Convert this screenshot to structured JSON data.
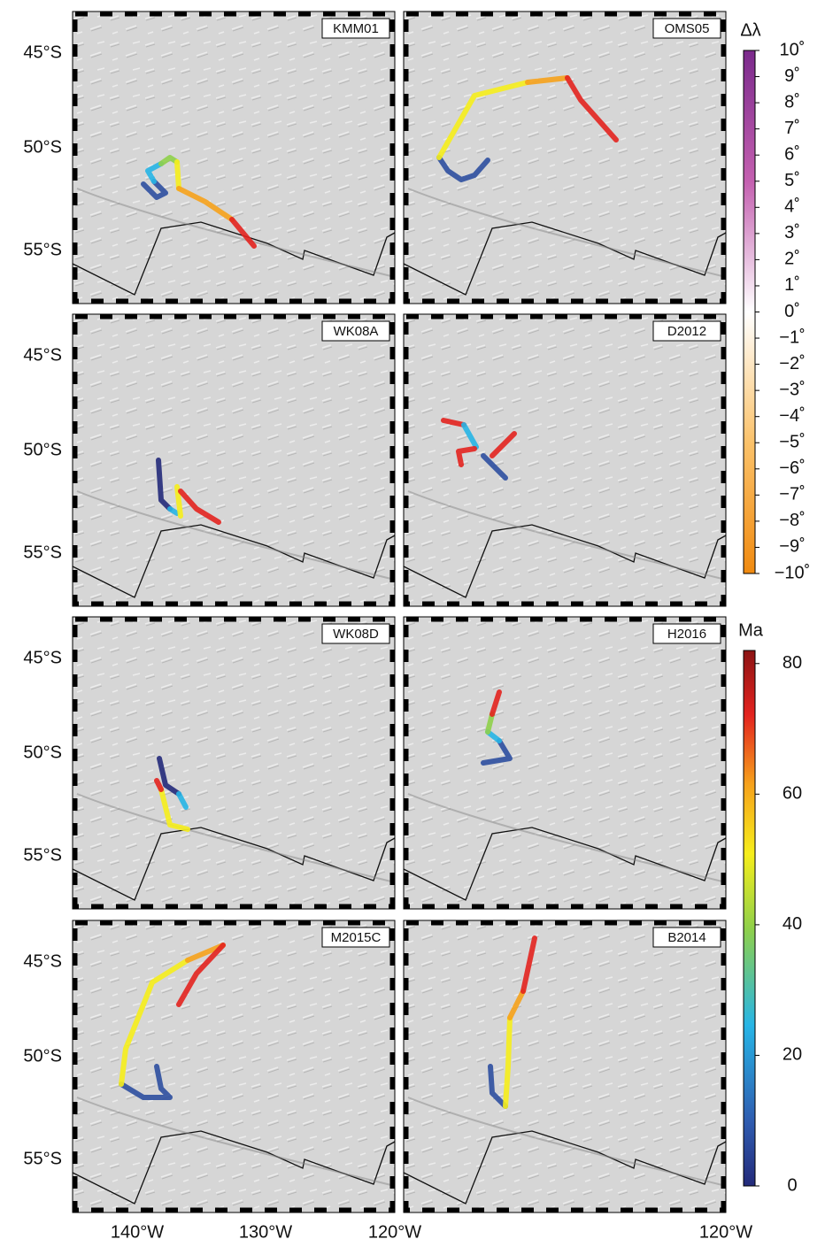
{
  "panels": [
    "KMM01",
    "OMS05",
    "WK08A",
    "D2012",
    "WK08D",
    "H2016",
    "M2015C",
    "B2014"
  ],
  "lat_labels": [
    "45°S",
    "50°S",
    "55°S"
  ],
  "lon_labels_left": [
    "140°W",
    "130°W",
    "120°W"
  ],
  "lon_labels_right": [
    "120°W"
  ],
  "colorbar_offset": {
    "title": "Δλ",
    "lim": [
      -10,
      10
    ],
    "ticks": [
      {
        "value": 10,
        "label": "10˚"
      },
      {
        "value": 9,
        "label": "9˚"
      },
      {
        "value": 8,
        "label": "8˚"
      },
      {
        "value": 7,
        "label": "7˚"
      },
      {
        "value": 6,
        "label": "6˚"
      },
      {
        "value": 5,
        "label": "5˚"
      },
      {
        "value": 4,
        "label": "4˚"
      },
      {
        "value": 3,
        "label": "3˚"
      },
      {
        "value": 2,
        "label": "2˚"
      },
      {
        "value": 1,
        "label": "1˚"
      },
      {
        "value": 0,
        "label": "0˚"
      },
      {
        "value": -1,
        "label": "−1˚"
      },
      {
        "value": -2,
        "label": "−2˚"
      },
      {
        "value": -3,
        "label": "−3˚"
      },
      {
        "value": -4,
        "label": "−4˚"
      },
      {
        "value": -5,
        "label": "−5˚"
      },
      {
        "value": -6,
        "label": "−6˚"
      },
      {
        "value": -7,
        "label": "−7˚"
      },
      {
        "value": -8,
        "label": "−8˚"
      },
      {
        "value": -9,
        "label": "−9˚"
      },
      {
        "value": -10,
        "label": "−10˚"
      }
    ]
  },
  "colorbar_age": {
    "title": "Ma",
    "lim": [
      0,
      82
    ],
    "ticks": [
      0,
      20,
      40,
      60,
      80
    ]
  }
}
